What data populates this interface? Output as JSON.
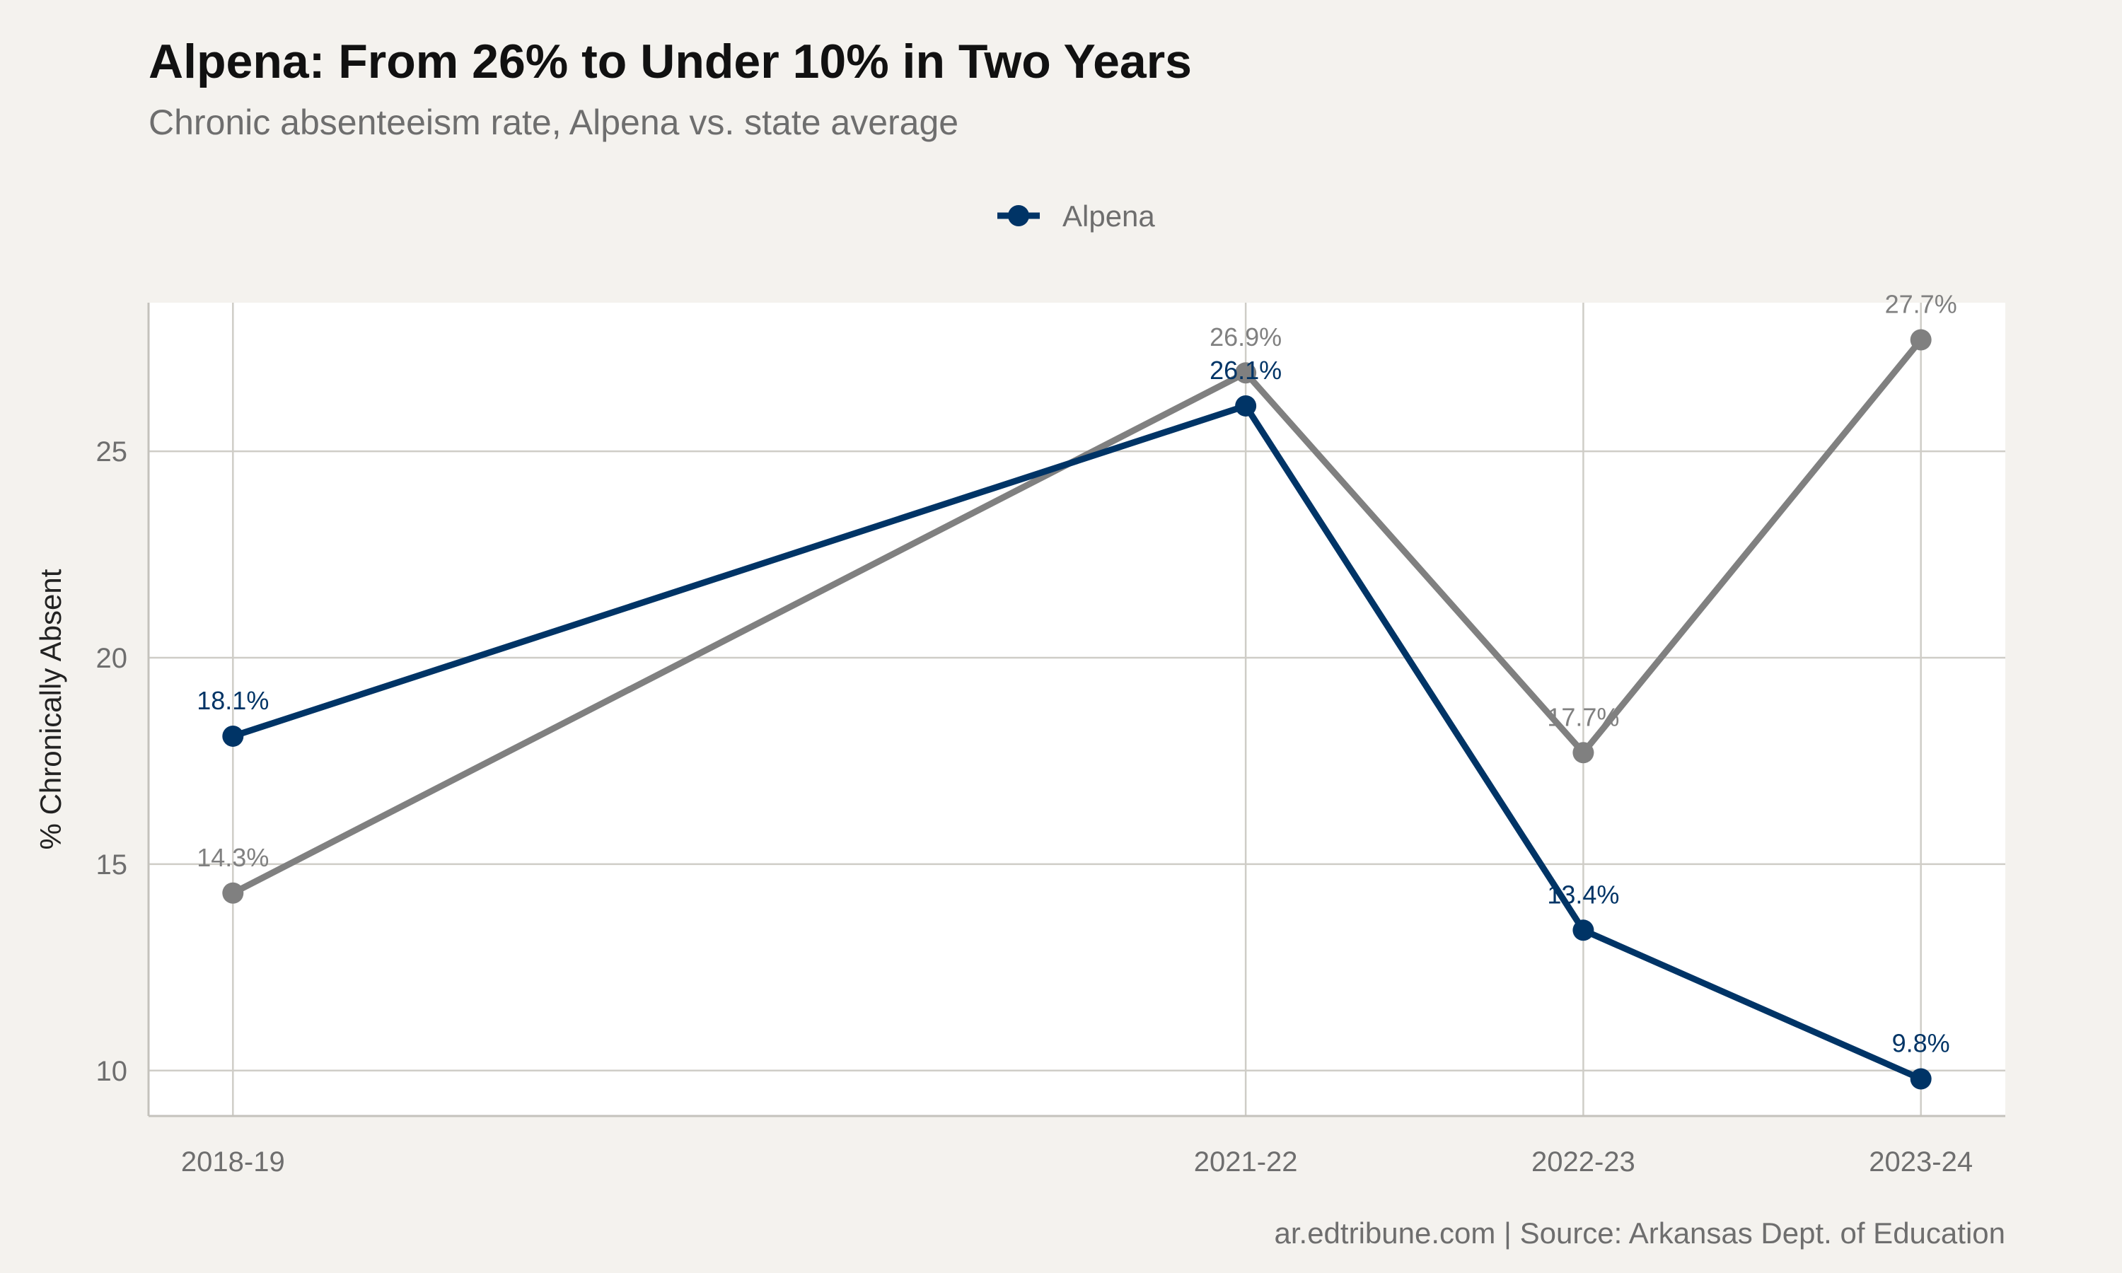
{
  "chart_data": {
    "type": "line",
    "title": "Alpena: From 26% to Under 10% in Two Years",
    "subtitle": "Chronic absenteeism rate, Alpena vs. state average",
    "caption": "ar.edtribune.com | Source: Arkansas Dept. of Education",
    "ylabel": "% Chronically Absent",
    "xlabel": "",
    "x": [
      "2018-19",
      "2021-22",
      "2022-23",
      "2023-24"
    ],
    "x_positions": [
      2018,
      2021,
      2022,
      2023
    ],
    "ylim": [
      8.9,
      28.6
    ],
    "yticks": [
      10,
      15,
      20,
      25
    ],
    "grid": true,
    "legend_position": "top",
    "series": [
      {
        "name": "",
        "color": "#808080",
        "values": [
          14.3,
          26.9,
          17.7,
          27.7
        ],
        "labels": [
          "14.3%",
          "26.9%",
          "17.7%",
          "27.7%"
        ]
      },
      {
        "name": "Alpena",
        "color": "#003466",
        "values": [
          18.1,
          26.1,
          13.4,
          9.8
        ],
        "labels": [
          "18.1%",
          "26.1%",
          "13.4%",
          "9.8%"
        ]
      }
    ]
  }
}
